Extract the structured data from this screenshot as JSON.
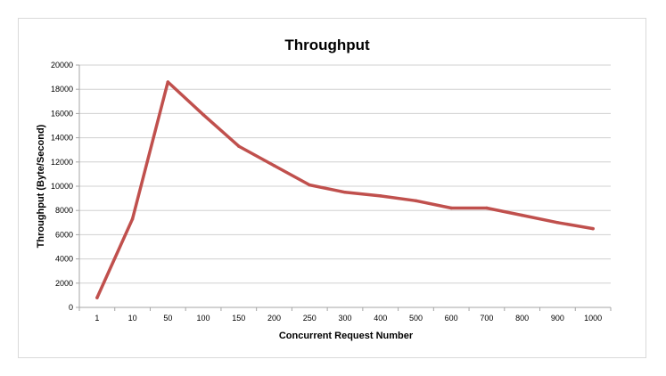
{
  "chart_data": {
    "type": "line",
    "title": "Throughput",
    "xlabel": "Concurrent Request Number",
    "ylabel": "Throughput  (Byte/Second)",
    "categories": [
      "1",
      "10",
      "50",
      "100",
      "150",
      "200",
      "250",
      "300",
      "400",
      "500",
      "600",
      "700",
      "800",
      "900",
      "1000"
    ],
    "series": [
      {
        "values": [
          800,
          7300,
          18600,
          15900,
          13300,
          11700,
          10100,
          9500,
          9200,
          8800,
          8200,
          8200,
          7600,
          7000,
          6500
        ],
        "color": "#c0504d"
      }
    ],
    "ylim": [
      0,
      20000
    ],
    "yticks": [
      0,
      2000,
      4000,
      6000,
      8000,
      10000,
      12000,
      14000,
      16000,
      18000,
      20000
    ],
    "grid": true,
    "legend": "none"
  }
}
